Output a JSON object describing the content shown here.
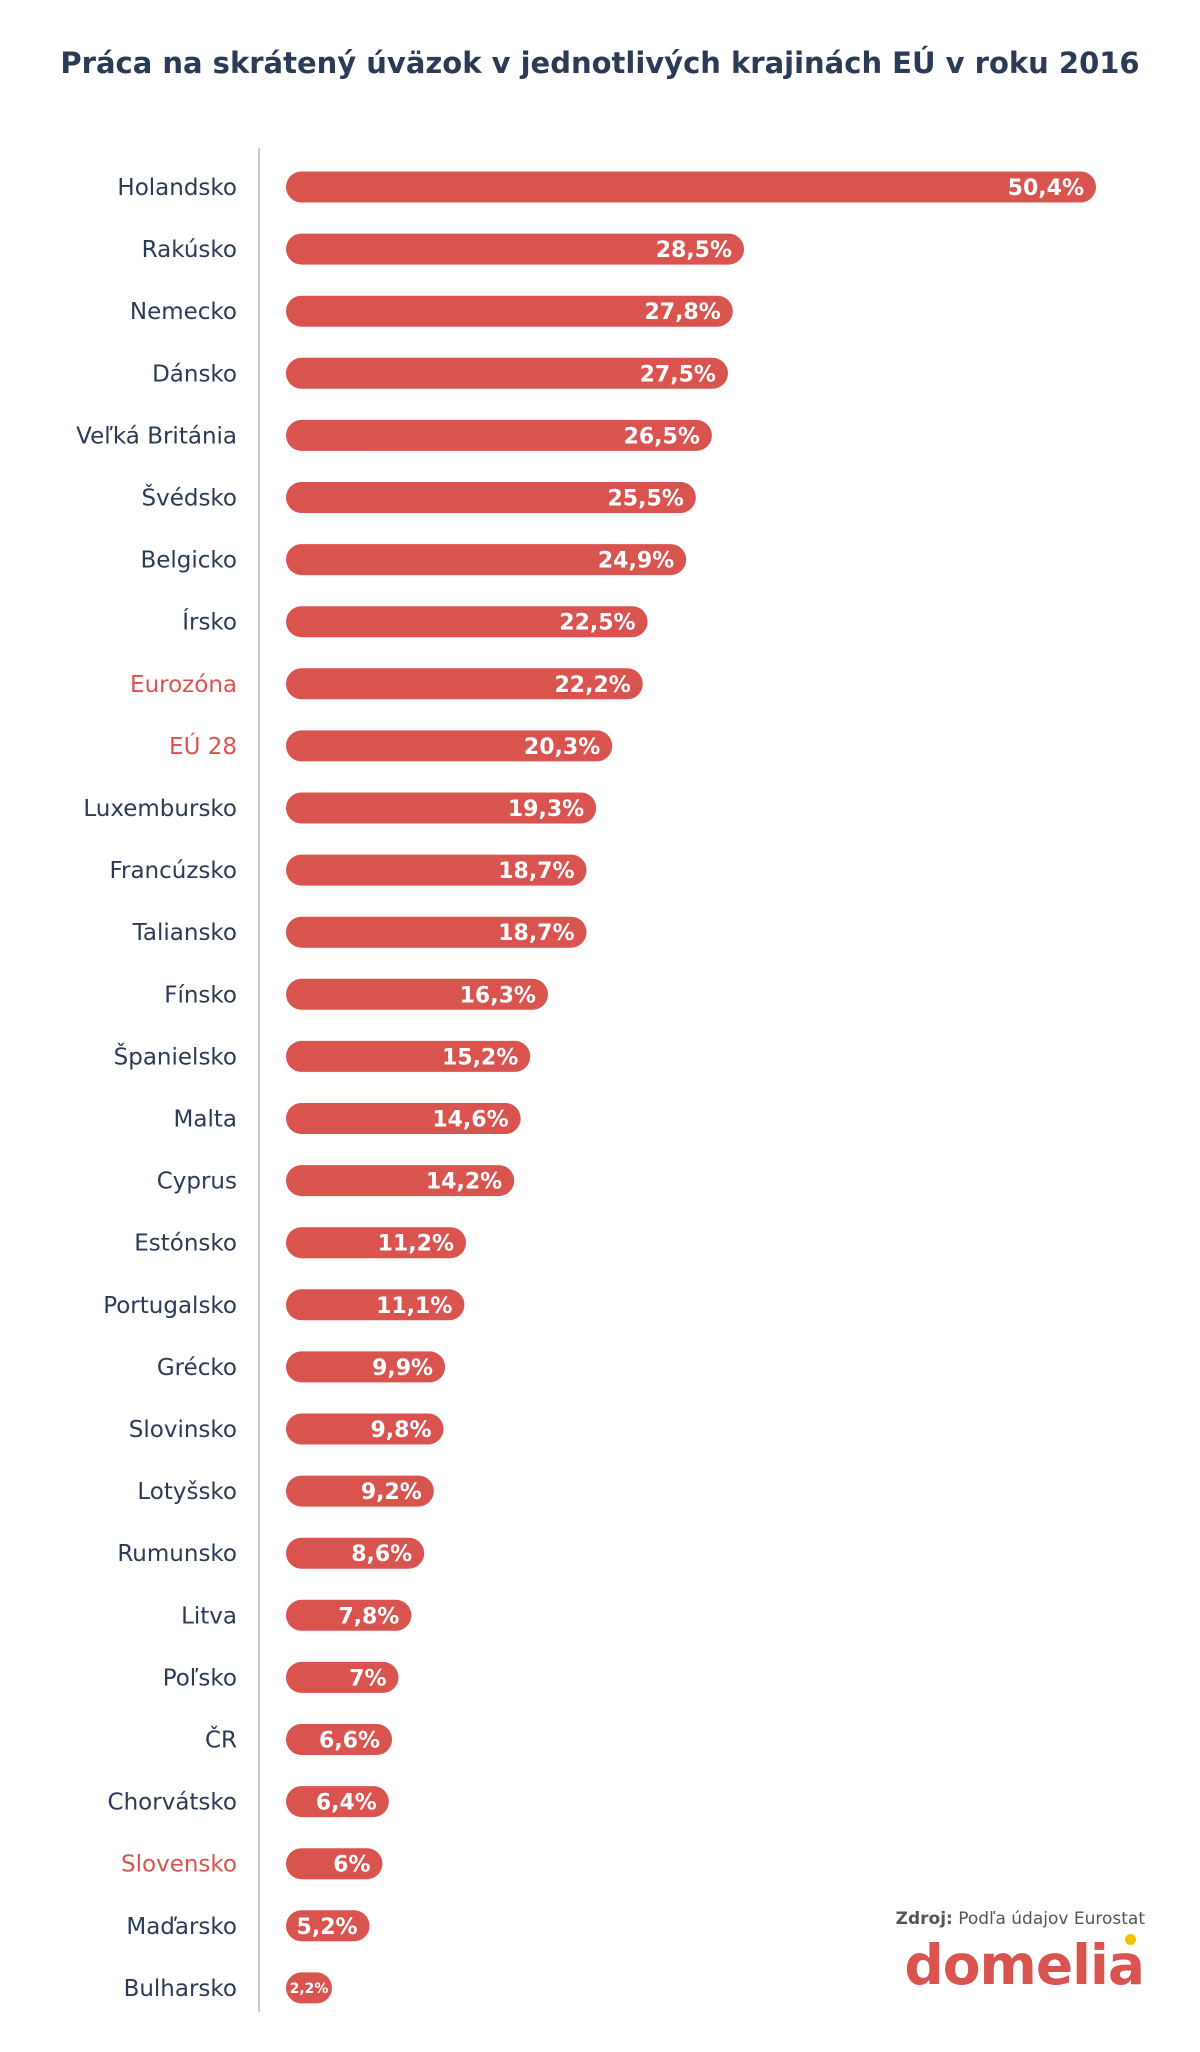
{
  "title": "Práca na skrátený úväzok v jednotlivých krajinách EÚ v roku 2016",
  "source_label": "Zdroj:",
  "source_text": " Podľa údajov Eurostat",
  "logo_text": "domelia",
  "colors": {
    "bar": "#d9534f",
    "label": "#2b3a55",
    "highlight": "#d9534f",
    "axis": "#cccccc",
    "logo_dot": "#f2c200"
  },
  "chart_data": {
    "type": "bar",
    "orientation": "horizontal",
    "title": "Práca na skrátený úväzok v jednotlivých krajinách EÚ v roku 2016",
    "xlabel": "",
    "ylabel": "",
    "xlim": [
      0,
      50.4
    ],
    "grid": false,
    "categories": [
      "Holandsko",
      "Rakúsko",
      "Nemecko",
      "Dánsko",
      "Veľká Británia",
      "Švédsko",
      "Belgicko",
      "Írsko",
      "Eurozóna",
      "EÚ 28",
      "Luxembursko",
      "Francúzsko",
      "Taliansko",
      "Fínsko",
      "Španielsko",
      "Malta",
      "Cyprus",
      "Estónsko",
      "Portugalsko",
      "Grécko",
      "Slovinsko",
      "Lotyšsko",
      "Rumunsko",
      "Litva",
      "Poľsko",
      "ČR",
      "Chorvátsko",
      "Slovensko",
      "Maďarsko",
      "Bulharsko"
    ],
    "values": [
      50.4,
      28.5,
      27.8,
      27.5,
      26.5,
      25.5,
      24.9,
      22.5,
      22.2,
      20.3,
      19.3,
      18.7,
      18.7,
      16.3,
      15.2,
      14.6,
      14.2,
      11.2,
      11.1,
      9.9,
      9.8,
      9.2,
      8.6,
      7.8,
      7,
      6.6,
      6.4,
      6,
      5.2,
      2.2
    ],
    "value_labels": [
      "50,4%",
      "28,5%",
      "27,8%",
      "27,5%",
      "26,5%",
      "25,5%",
      "24,9%",
      "22,5%",
      "22,2%",
      "20,3%",
      "19,3%",
      "18,7%",
      "18,7%",
      "16,3%",
      "15,2%",
      "14,6%",
      "14,2%",
      "11,2%",
      "11,1%",
      "9,9%",
      "9,8%",
      "9,2%",
      "8,6%",
      "7,8%",
      "7%",
      "6,6%",
      "6,4%",
      "6%",
      "5,2%",
      "2,2%"
    ],
    "highlighted": [
      "Eurozóna",
      "EÚ 28",
      "Slovensko"
    ]
  }
}
